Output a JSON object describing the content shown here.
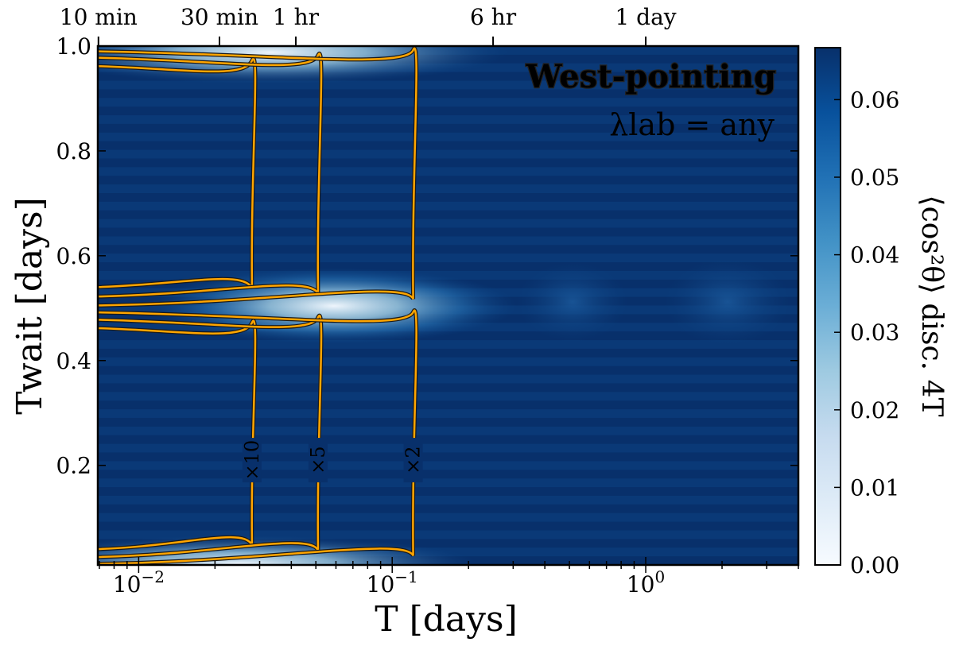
{
  "chart_data": {
    "type": "heatmap",
    "title": "West-pointing",
    "annotation": "λlab = any",
    "xlabel": "T [days]",
    "ylabel": "Twait [days]",
    "colorbar_label": "⟨cos²θ⟩ disc. 4T",
    "x_scale": "log",
    "xlim": [
      0.0069,
      4.0
    ],
    "ylim": [
      0.01,
      1.0
    ],
    "x_ticks": [
      {
        "value": 0.01,
        "label": "10−2"
      },
      {
        "value": 0.1,
        "label": "10−1"
      },
      {
        "value": 1,
        "label": "100"
      }
    ],
    "y_ticks": [
      0.2,
      0.4,
      0.6,
      0.8,
      1.0
    ],
    "y_tick_labels": [
      "0.2",
      "0.4",
      "0.6",
      "0.8",
      "1.0"
    ],
    "top_axis_ticks": [
      {
        "label": "10 min",
        "value": 0.00694
      },
      {
        "label": "30 min",
        "value": 0.02083
      },
      {
        "label": "1 hr",
        "value": 0.04167
      },
      {
        "label": "6 hr",
        "value": 0.25
      },
      {
        "label": "1 day",
        "value": 1.0
      }
    ],
    "colorbar": {
      "range": [
        0.0,
        0.0667
      ],
      "ticks": [
        0.0,
        0.01,
        0.02,
        0.03,
        0.04,
        0.05,
        0.06
      ],
      "tick_labels": [
        "0.00",
        "0.01",
        "0.02",
        "0.03",
        "0.04",
        "0.05",
        "0.06"
      ],
      "colormap": "Blues",
      "color_low": "#f7fbff",
      "color_high": "#08306b"
    },
    "contours": [
      {
        "label": "×10",
        "T_at_mid": 0.028,
        "T_at_bottom": 0.007
      },
      {
        "label": "×5",
        "T_at_mid": 0.051,
        "T_at_bottom": 0.007
      },
      {
        "label": "×2",
        "T_at_mid": 0.121,
        "T_at_bottom": 0.007
      }
    ],
    "contour_color": "#ffa500",
    "grid": false
  }
}
